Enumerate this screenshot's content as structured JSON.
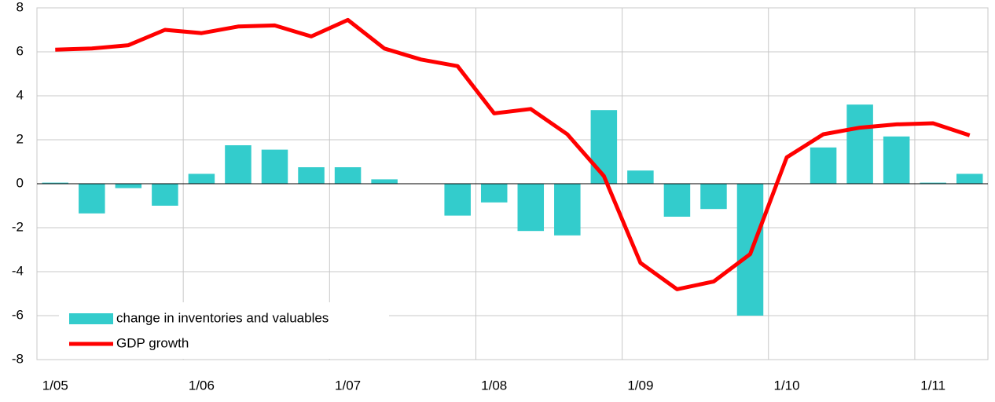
{
  "chart_data": {
    "type": "bar",
    "categories": [
      "1/05",
      null,
      null,
      null,
      "1/06",
      null,
      null,
      null,
      "1/07",
      null,
      null,
      null,
      "1/08",
      null,
      null,
      null,
      "1/09",
      null,
      null,
      null,
      "1/10",
      null,
      null,
      null,
      "1/11",
      null
    ],
    "series": [
      {
        "name": "change in inventories and valuables",
        "type": "bar",
        "color": "#33cccc",
        "values": [
          0.05,
          -1.35,
          -0.2,
          -1.0,
          0.45,
          1.75,
          1.55,
          0.75,
          0.75,
          0.2,
          null,
          -1.45,
          -0.85,
          -2.15,
          -2.35,
          3.35,
          0.6,
          -1.5,
          -1.15,
          -6.0,
          null,
          1.65,
          3.6,
          2.15,
          0.05,
          0.45
        ]
      },
      {
        "name": "GDP growth",
        "type": "line",
        "color": "#ff0000",
        "values": [
          6.1,
          6.15,
          6.3,
          7.0,
          6.85,
          7.15,
          7.2,
          6.7,
          7.45,
          6.15,
          5.65,
          5.35,
          3.2,
          3.4,
          2.25,
          0.35,
          -3.6,
          -4.8,
          -4.45,
          -3.2,
          1.2,
          2.25,
          2.55,
          2.7,
          2.75,
          2.2
        ]
      }
    ],
    "ylim": [
      -8,
      8
    ],
    "yticks": [
      -8,
      -6,
      -4,
      -2,
      0,
      2,
      4,
      6,
      8
    ],
    "grid": true,
    "legend": "lower-left"
  }
}
